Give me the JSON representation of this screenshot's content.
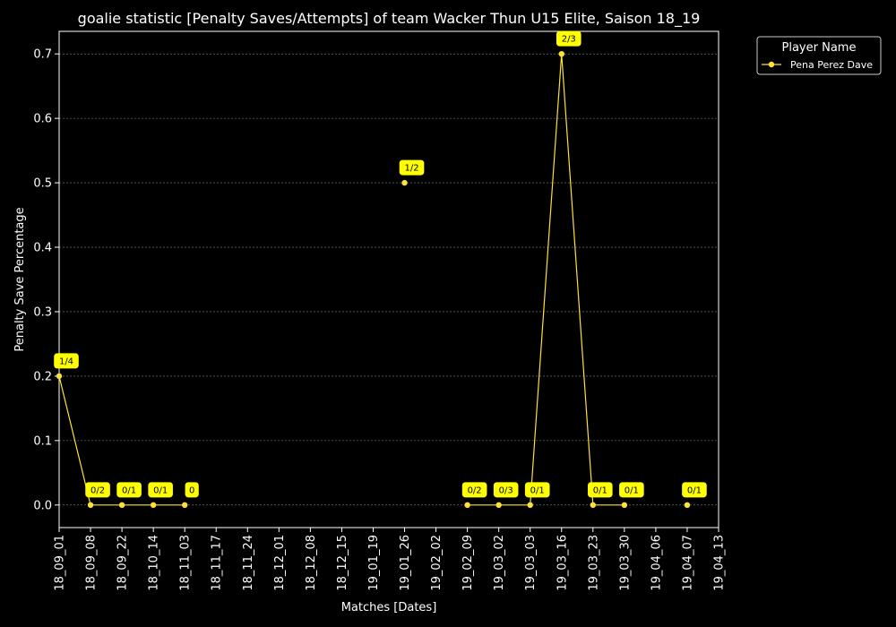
{
  "chart_data": {
    "type": "line",
    "title": "goalie statistic [Penalty Saves/Attempts] of team Wacker Thun U15 Elite, Saison 18_19",
    "xlabel": "Matches [Dates]",
    "ylabel": "Penalty Save Percentage",
    "categories": [
      "18_09_01",
      "18_09_08",
      "18_09_22",
      "18_10_14",
      "18_11_03",
      "18_11_17",
      "18_11_24",
      "18_12_01",
      "18_12_08",
      "18_12_15",
      "19_01_19",
      "19_01_26",
      "19_02_02",
      "19_02_09",
      "19_03_02",
      "19_03_03",
      "19_03_16",
      "19_03_23",
      "19_03_30",
      "19_04_06",
      "19_04_07",
      "19_04_13"
    ],
    "yticks": [
      "0.0",
      "0.1",
      "0.2",
      "0.3",
      "0.4",
      "0.5",
      "0.6",
      "0.7"
    ],
    "ylim": [
      -0.035,
      0.735
    ],
    "grid": true,
    "legend": {
      "title": "Player Name",
      "placement": "outside-top-right"
    },
    "series": [
      {
        "name": "Pena Perez Dave",
        "color": "#ffe135",
        "values": [
          0.2,
          0,
          0,
          0,
          0,
          null,
          null,
          null,
          null,
          null,
          null,
          0.5,
          null,
          0,
          0,
          0,
          0.7,
          0,
          0,
          null,
          0,
          null
        ],
        "labels": [
          "1/4",
          "0/2",
          "0/1",
          "0/1",
          "0",
          null,
          null,
          null,
          null,
          null,
          null,
          "1/2",
          null,
          "0/2",
          "0/3",
          "0/1",
          "2/3",
          "0/1",
          "0/1",
          null,
          "0/1",
          null
        ]
      }
    ]
  }
}
